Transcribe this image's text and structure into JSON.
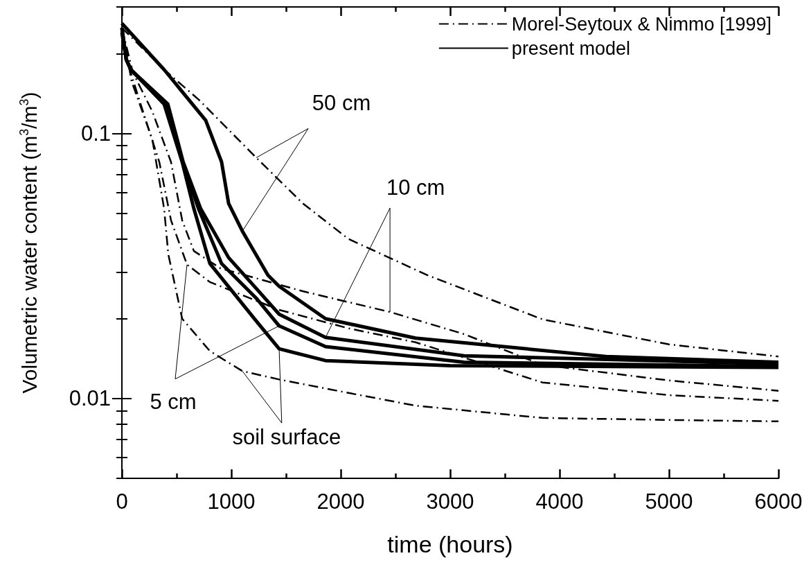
{
  "chart_data": {
    "type": "line",
    "xlabel": "time (hours)",
    "ylabel": "Volumetric water content (m$^{3}$/m$^{3}$)",
    "log": "y",
    "grid": false,
    "legend": "top right",
    "marker": "none",
    "xlim": [
      0,
      6000
    ],
    "xticks": [
      0,
      {
        "value": 500,
        "label": null
      },
      1000,
      {
        "value": 1500,
        "label": null
      },
      2000,
      {
        "value": 2500,
        "label": null
      },
      3000,
      {
        "value": 3500,
        "label": null
      },
      4000,
      {
        "value": 4500,
        "label": null
      },
      5000,
      {
        "value": 5500,
        "label": null
      },
      6000
    ],
    "ylim": [
      0.005,
      0.3
    ],
    "yticks": [
      {
        "value": 0.005,
        "label": null
      },
      {
        "value": 0.006,
        "label": null
      },
      {
        "value": 0.007,
        "label": null
      },
      {
        "value": 0.008,
        "label": null
      },
      {
        "value": 0.009,
        "label": null
      },
      0.01,
      {
        "value": 0.02,
        "label": null
      },
      {
        "value": 0.03,
        "label": null
      },
      {
        "value": 0.04,
        "label": null
      },
      {
        "value": 0.05,
        "label": null
      },
      {
        "value": 0.06,
        "label": null
      },
      {
        "value": 0.07,
        "label": null
      },
      {
        "value": 0.08,
        "label": null
      },
      {
        "value": 0.09,
        "label": null
      },
      0.1,
      {
        "value": 0.2,
        "label": null
      },
      {
        "value": 0.3,
        "label": null
      }
    ],
    "series": [
      {
        "name": "Morel-Seytoux & Nimmo [1999]",
        "color": "#000000",
        "line_style": "dashdot",
        "x": [
          0,
          386,
          703,
          1228,
          1652,
          2070,
          2791,
          3842,
          5000,
          6000
        ],
        "values": [
          0.25,
          0.174,
          0.134,
          0.081,
          0.0545,
          0.04,
          0.0292,
          0.0199,
          0.016,
          0.0144
        ]
      },
      {
        "color": "#000000",
        "line_style": "dashdot",
        "x": [
          0,
          100,
          278,
          449,
          551,
          658,
          900,
          1652,
          2450,
          3127,
          3842,
          5000,
          6000
        ],
        "values": [
          0.25,
          0.17,
          0.121,
          0.078,
          0.047,
          0.036,
          0.031,
          0.0254,
          0.0212,
          0.0175,
          0.0134,
          0.0117,
          0.0107
        ]
      },
      {
        "color": "#000000",
        "line_style": "dashdot",
        "x": [
          0,
          80,
          171,
          342,
          449,
          595,
          804,
          1437,
          2070,
          2684,
          3842,
          5000,
          6000
        ],
        "values": [
          0.25,
          0.17,
          0.129,
          0.078,
          0.047,
          0.032,
          0.0275,
          0.0216,
          0.0184,
          0.0163,
          0.0115,
          0.0103,
          0.0098
        ]
      },
      {
        "color": "#000000",
        "line_style": "dashdot",
        "x": [
          0,
          89,
          278,
          386,
          424,
          551,
          804,
          1100,
          1437,
          2070,
          2684,
          3842,
          5000,
          6000
        ],
        "values": [
          0.25,
          0.157,
          0.095,
          0.052,
          0.035,
          0.02,
          0.0151,
          0.0127,
          0.0118,
          0.0105,
          0.0094,
          0.00845,
          0.0083,
          0.0082
        ]
      },
      {
        "name": "present model",
        "color": "#000000",
        "line_style": "solid",
        "x": [
          0,
          386,
          766,
          911,
          975,
          1101,
          1335,
          1437,
          1861,
          2684,
          4424,
          6000
        ],
        "values": [
          0.26,
          0.174,
          0.112,
          0.078,
          0.0545,
          0.0428,
          0.0292,
          0.0265,
          0.02,
          0.0169,
          0.0144,
          0.0137
        ]
      },
      {
        "color": "#000000",
        "line_style": "solid",
        "x": [
          0,
          40,
          82,
          420,
          560,
          720,
          975,
          1228,
          1437,
          1861,
          3127,
          6000
        ],
        "values": [
          0.25,
          0.19,
          0.174,
          0.129,
          0.078,
          0.052,
          0.034,
          0.026,
          0.0208,
          0.017,
          0.0145,
          0.0135
        ]
      },
      {
        "color": "#000000",
        "line_style": "solid",
        "x": [
          0,
          40,
          82,
          400,
          555,
          700,
          911,
          1228,
          1437,
          1861,
          3127,
          6000
        ],
        "values": [
          0.25,
          0.19,
          0.174,
          0.129,
          0.078,
          0.052,
          0.0323,
          0.0239,
          0.0188,
          0.0157,
          0.0137,
          0.0132
        ]
      },
      {
        "color": "#000000",
        "line_style": "solid",
        "x": [
          0,
          40,
          82,
          386,
          551,
          658,
          804,
          1228,
          1437,
          1861,
          3000,
          6000
        ],
        "values": [
          0.24,
          0.19,
          0.174,
          0.129,
          0.078,
          0.052,
          0.0323,
          0.0196,
          0.0154,
          0.0139,
          0.0133,
          0.0131
        ]
      }
    ],
    "annotations": [
      {
        "text": "50 cm",
        "x": 1228,
        "y": 0.081
      },
      {
        "text": "10 cm",
        "x": 2450,
        "y": 0.0212
      },
      {
        "text": "5 cm",
        "x": 595,
        "y": 0.032
      },
      {
        "text": "soil surface",
        "x": 1100,
        "y": 0.0127
      }
    ]
  }
}
